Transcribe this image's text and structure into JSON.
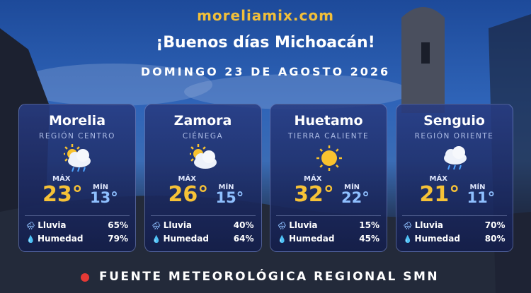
{
  "header": {
    "site": "moreliamix.com",
    "greeting": "¡Buenos días Michoacán!",
    "date": "DOMINGO 23 DE AGOSTO 2026"
  },
  "cities": [
    {
      "name": "Morelia",
      "region": "REGIÓN CENTRO",
      "max_label": "MÁX",
      "max": "23°",
      "min_label": "MÍN",
      "min": "13°",
      "rain_label": "Lluvia",
      "rain": "65%",
      "humidity_label": "Humedad",
      "humidity": "79%"
    },
    {
      "name": "Zamora",
      "region": "CIÉNEGA",
      "max_label": "MÁX",
      "max": "26°",
      "min_label": "MÍN",
      "min": "15°",
      "rain_label": "Lluvia",
      "rain": "40%",
      "humidity_label": "Humedad",
      "humidity": "64%"
    },
    {
      "name": "Huetamo",
      "region": "TIERRA CALIENTE",
      "max_label": "MÁX",
      "max": "32°",
      "min_label": "MÍN",
      "min": "22°",
      "rain_label": "Lluvia",
      "rain": "15%",
      "humidity_label": "Humedad",
      "humidity": "45%"
    },
    {
      "name": "Senguio",
      "region": "REGIÓN ORIENTE",
      "max_label": "MÁX",
      "max": "21°",
      "min_label": "MÍN",
      "min": "11°",
      "rain_label": "Lluvia",
      "rain": "70%",
      "humidity_label": "Humedad",
      "humidity": "80%"
    }
  ],
  "footer": {
    "source": "FUENTE METEOROLÓGICA REGIONAL SMN"
  }
}
